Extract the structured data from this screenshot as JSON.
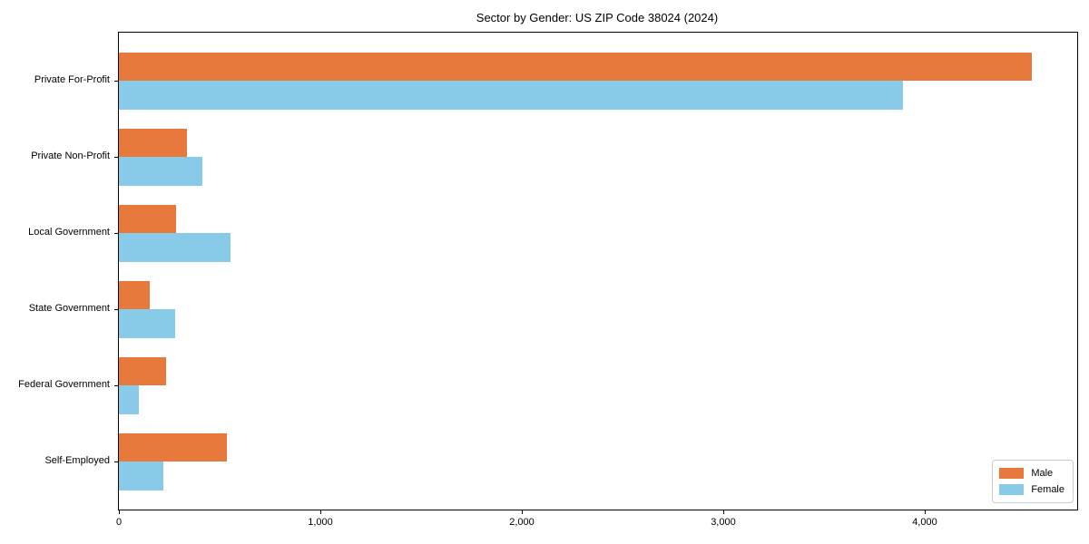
{
  "chart_data": {
    "type": "bar",
    "orientation": "horizontal",
    "title": "Sector by Gender: US ZIP Code 38024 (2024)",
    "xlabel": "",
    "ylabel": "",
    "categories": [
      "Private For-Profit",
      "Private Non-Profit",
      "Local Government",
      "State Government",
      "Federal Government",
      "Self-Employed"
    ],
    "series": [
      {
        "name": "Male",
        "color": "#E8793C",
        "values": [
          4530,
          340,
          285,
          155,
          235,
          535
        ]
      },
      {
        "name": "Female",
        "color": "#87CBE8",
        "values": [
          3890,
          415,
          555,
          280,
          100,
          220
        ]
      }
    ],
    "xlim": [
      0,
      4757
    ],
    "x_ticks": [
      0,
      1000,
      2000,
      3000,
      4000
    ],
    "x_tick_labels": [
      "0",
      "1,000",
      "2,000",
      "3,000",
      "4,000"
    ],
    "grid": false,
    "legend_position": "lower right",
    "frame_color": "#000000",
    "background_color": "#ffffff"
  }
}
